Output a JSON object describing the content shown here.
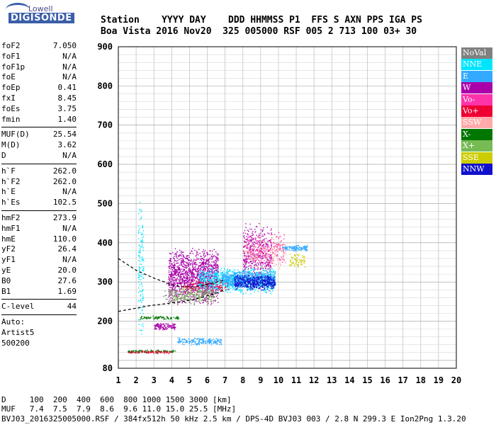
{
  "logo": {
    "top": "Lowell",
    "main": "DIGISONDE"
  },
  "header": {
    "line1": "Station    YYYY DAY    DDD HHMMSS P1  FFS S AXN PPS IGA PS",
    "line2": "Boa Vista 2016 Nov20  325 005000 RSF 005 2 713 100 03+ 30"
  },
  "params": {
    "group1": [
      {
        "name": "foF2",
        "value": "7.050"
      },
      {
        "name": "foF1",
        "value": "N/A"
      },
      {
        "name": "foF1p",
        "value": "N/A"
      },
      {
        "name": "foE",
        "value": "N/A"
      },
      {
        "name": "foEp",
        "value": "0.41"
      },
      {
        "name": "fxI",
        "value": "8.45"
      },
      {
        "name": "foEs",
        "value": "3.75"
      },
      {
        "name": "fmin",
        "value": "1.40"
      }
    ],
    "group2": [
      {
        "name": "MUF(D)",
        "value": "25.54"
      },
      {
        "name": "M(D)",
        "value": "3.62"
      },
      {
        "name": "D",
        "value": "N/A"
      }
    ],
    "group3": [
      {
        "name": "h`F",
        "value": "262.0"
      },
      {
        "name": "h`F2",
        "value": "262.0"
      },
      {
        "name": "h`E",
        "value": "N/A"
      },
      {
        "name": "h`Es",
        "value": "102.5"
      }
    ],
    "group4": [
      {
        "name": "hmF2",
        "value": "273.9"
      },
      {
        "name": "hmF1",
        "value": "N/A"
      },
      {
        "name": "hmE",
        "value": "110.0"
      },
      {
        "name": "yF2",
        "value": "26.4"
      },
      {
        "name": "yF1",
        "value": "N/A"
      },
      {
        "name": "yE",
        "value": "20.0"
      },
      {
        "name": "B0",
        "value": "27.6"
      },
      {
        "name": "B1",
        "value": "1.69"
      }
    ],
    "clevel": {
      "name": "C-level",
      "value": "44"
    },
    "auto": [
      "Auto:",
      "Artist5",
      "500200"
    ]
  },
  "legend": [
    {
      "label": "NoVal",
      "color": "#808080"
    },
    {
      "label": "NNE",
      "color": "#00e5ff"
    },
    {
      "label": "E",
      "color": "#33aaff"
    },
    {
      "label": "W",
      "color": "#aa00aa"
    },
    {
      "label": "Vo-",
      "color": "#ff33aa"
    },
    {
      "label": "Vo+",
      "color": "#ee0033"
    },
    {
      "label": "SSW",
      "color": "#ffaaaa"
    },
    {
      "label": "X-",
      "color": "#007700"
    },
    {
      "label": "X+",
      "color": "#77bb55"
    },
    {
      "label": "SSE",
      "color": "#cccc00"
    },
    {
      "label": "NNW",
      "color": "#1111cc"
    }
  ],
  "chart_data": {
    "type": "scatter",
    "xlim": [
      1,
      20
    ],
    "ylim": [
      80,
      900
    ],
    "x_ticks": [
      1,
      2,
      3,
      4,
      5,
      6,
      7,
      8,
      9,
      10,
      11,
      12,
      13,
      14,
      15,
      16,
      17,
      18,
      19,
      20
    ],
    "y_ticks": [
      80,
      200,
      300,
      400,
      500,
      600,
      700,
      800,
      900
    ],
    "grid": true,
    "legend_position": "right",
    "clusters": [
      {
        "series": "W",
        "color": "#aa00aa",
        "x": [
          3.8,
          6.6
        ],
        "y": [
          240,
          390
        ],
        "n": 1400
      },
      {
        "series": "W",
        "color": "#aa00aa",
        "x": [
          8.0,
          9.6
        ],
        "y": [
          270,
          460
        ],
        "n": 500
      },
      {
        "series": "W",
        "color": "#aa00aa",
        "x": [
          3.0,
          4.2
        ],
        "y": [
          178,
          196
        ],
        "n": 120
      },
      {
        "series": "NNE",
        "color": "#00e5ff",
        "x": [
          5.5,
          9.8
        ],
        "y": [
          270,
          340
        ],
        "n": 900
      },
      {
        "series": "NNE",
        "color": "#00e5ff",
        "x": [
          2.1,
          2.4
        ],
        "y": [
          150,
          520
        ],
        "n": 140
      },
      {
        "series": "E",
        "color": "#33aaff",
        "x": [
          6.8,
          9.8
        ],
        "y": [
          285,
          330
        ],
        "n": 700
      },
      {
        "series": "E",
        "color": "#33aaff",
        "x": [
          4.3,
          6.8
        ],
        "y": [
          140,
          160
        ],
        "n": 200
      },
      {
        "series": "E",
        "color": "#33aaff",
        "x": [
          10.2,
          11.6
        ],
        "y": [
          380,
          395
        ],
        "n": 150
      },
      {
        "series": "NNW",
        "color": "#1111cc",
        "x": [
          7.5,
          9.8
        ],
        "y": [
          280,
          320
        ],
        "n": 450
      },
      {
        "series": "Vo-",
        "color": "#ff33aa",
        "x": [
          8.2,
          10.3
        ],
        "y": [
          340,
          430
        ],
        "n": 220
      },
      {
        "series": "Vo+",
        "color": "#ee0033",
        "x": [
          4.6,
          7.2
        ],
        "y": [
          270,
          310
        ],
        "n": 120
      },
      {
        "series": "SSW",
        "color": "#ffaaaa",
        "x": [
          8.0,
          10.4
        ],
        "y": [
          330,
          420
        ],
        "n": 200
      },
      {
        "series": "X+",
        "color": "#77bb55",
        "x": [
          3.8,
          6.4
        ],
        "y": [
          245,
          290
        ],
        "n": 220
      },
      {
        "series": "X-",
        "color": "#007700",
        "x": [
          2.2,
          4.4
        ],
        "y": [
          205,
          215
        ],
        "n": 90
      },
      {
        "series": "X-",
        "color": "#007700",
        "x": [
          1.5,
          4.2
        ],
        "y": [
          120,
          128
        ],
        "n": 110
      },
      {
        "series": "SSE",
        "color": "#cccc00",
        "x": [
          10.6,
          11.5
        ],
        "y": [
          335,
          375
        ],
        "n": 70
      },
      {
        "series": "Vo+",
        "color": "#ee0033",
        "x": [
          1.5,
          4.0
        ],
        "y": [
          118,
          126
        ],
        "n": 70
      },
      {
        "series": "NoVal",
        "color": "#808080",
        "x": [
          3.5,
          6.5
        ],
        "y": [
          240,
          300
        ],
        "n": 80
      }
    ],
    "profile_curve": {
      "x": [
        1.0,
        2.0,
        3.0,
        3.6,
        4.0,
        4.6,
        5.2,
        5.8,
        6.4,
        7.0
      ],
      "y": [
        360,
        330,
        310,
        300,
        292,
        288,
        288,
        292,
        298,
        305
      ]
    },
    "virtual_height_trace": {
      "x": [
        1.0,
        1.6,
        2.2,
        2.8,
        3.4,
        4.0,
        4.6,
        5.2,
        5.8,
        6.4,
        7.0
      ],
      "y": [
        225,
        230,
        235,
        240,
        243,
        247,
        250,
        255,
        262,
        270,
        280
      ]
    }
  },
  "footer": {
    "d_row": "D     100  200  400  600  800 1000 1500 3000 [km]",
    "muf_row": "MUF   7.4  7.5  7.9  8.6  9.6 11.0 15.0 25.5 [MHz]",
    "file_row": "BVJ03_2016325005000.RSF / 384fx512h 50 kHz 2.5 km / DPS-4D BVJ03 003 / 2.8 N 299.3 E Ion2Png 1.3.20"
  }
}
